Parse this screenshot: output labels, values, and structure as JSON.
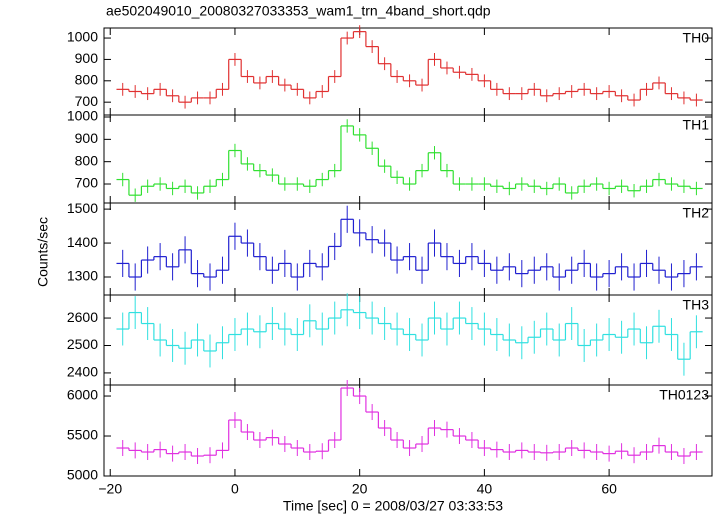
{
  "chart_data": [
    {
      "type": "line",
      "title": "ae502049010_20080327033353_wam1_trn_4band_short.qdp",
      "x": [
        -18,
        -16,
        -14,
        -12,
        -10,
        -8,
        -6,
        -4,
        -2,
        0,
        2,
        4,
        6,
        8,
        10,
        12,
        14,
        16,
        18,
        20,
        22,
        24,
        26,
        28,
        30,
        32,
        34,
        36,
        38,
        40,
        42,
        44,
        46,
        48,
        50,
        52,
        54,
        56,
        58,
        60,
        62,
        64,
        66,
        68,
        70,
        72,
        74
      ],
      "series": [
        {
          "name": "TH0",
          "color": "#e03030",
          "values": [
            760,
            750,
            740,
            760,
            730,
            700,
            720,
            720,
            760,
            900,
            820,
            790,
            820,
            780,
            760,
            720,
            750,
            820,
            1000,
            1030,
            960,
            880,
            820,
            800,
            780,
            900,
            860,
            840,
            830,
            800,
            760,
            740,
            740,
            760,
            730,
            740,
            750,
            760,
            740,
            750,
            730,
            710,
            760,
            790,
            740,
            720,
            710
          ]
        }
      ],
      "error": 30,
      "ylim": [
        640,
        1047
      ],
      "yticks": [
        700,
        800,
        900,
        1000
      ]
    },
    {
      "type": "line",
      "x": [
        -18,
        -16,
        -14,
        -12,
        -10,
        -8,
        -6,
        -4,
        -2,
        0,
        2,
        4,
        6,
        8,
        10,
        12,
        14,
        16,
        18,
        20,
        22,
        24,
        26,
        28,
        30,
        32,
        34,
        36,
        38,
        40,
        42,
        44,
        46,
        48,
        50,
        52,
        54,
        56,
        58,
        60,
        62,
        64,
        66,
        68,
        70,
        72,
        74
      ],
      "series": [
        {
          "name": "TH1",
          "color": "#30e030",
          "values": [
            720,
            650,
            690,
            700,
            680,
            690,
            660,
            690,
            720,
            850,
            790,
            760,
            740,
            700,
            700,
            690,
            720,
            760,
            960,
            920,
            860,
            780,
            730,
            700,
            760,
            840,
            760,
            700,
            700,
            700,
            690,
            680,
            700,
            690,
            680,
            700,
            660,
            690,
            700,
            680,
            690,
            670,
            690,
            720,
            700,
            690,
            680
          ]
        }
      ],
      "error": 30,
      "ylim": [
        615,
        1009
      ],
      "yticks": [
        700,
        800,
        900,
        1000
      ]
    },
    {
      "type": "line",
      "y_label": "Counts/sec",
      "x": [
        -18,
        -16,
        -14,
        -12,
        -10,
        -8,
        -6,
        -4,
        -2,
        0,
        2,
        4,
        6,
        8,
        10,
        12,
        14,
        16,
        18,
        20,
        22,
        24,
        26,
        28,
        30,
        32,
        34,
        36,
        38,
        40,
        42,
        44,
        46,
        48,
        50,
        52,
        54,
        56,
        58,
        60,
        62,
        64,
        66,
        68,
        70,
        72,
        74
      ],
      "series": [
        {
          "name": "TH2",
          "color": "#2020d0",
          "values": [
            1340,
            1300,
            1350,
            1360,
            1330,
            1380,
            1310,
            1300,
            1320,
            1420,
            1400,
            1360,
            1320,
            1340,
            1300,
            1340,
            1330,
            1390,
            1470,
            1430,
            1410,
            1400,
            1350,
            1360,
            1320,
            1400,
            1360,
            1340,
            1360,
            1340,
            1320,
            1330,
            1310,
            1320,
            1330,
            1300,
            1320,
            1340,
            1300,
            1310,
            1330,
            1300,
            1340,
            1320,
            1300,
            1310,
            1330
          ]
        }
      ],
      "error": 40,
      "ylim": [
        1247,
        1518
      ],
      "yticks": [
        1300,
        1400,
        1500
      ]
    },
    {
      "type": "line",
      "x": [
        -18,
        -16,
        -14,
        -12,
        -10,
        -8,
        -6,
        -4,
        -2,
        0,
        2,
        4,
        6,
        8,
        10,
        12,
        14,
        16,
        18,
        20,
        22,
        24,
        26,
        28,
        30,
        32,
        34,
        36,
        38,
        40,
        42,
        44,
        46,
        48,
        50,
        52,
        54,
        56,
        58,
        60,
        62,
        64,
        66,
        68,
        70,
        72,
        74
      ],
      "series": [
        {
          "name": "TH3",
          "color": "#30e0e0",
          "values": [
            2560,
            2620,
            2580,
            2520,
            2500,
            2490,
            2520,
            2480,
            2510,
            2540,
            2560,
            2550,
            2580,
            2560,
            2540,
            2590,
            2560,
            2600,
            2630,
            2620,
            2600,
            2580,
            2560,
            2540,
            2520,
            2600,
            2560,
            2600,
            2580,
            2560,
            2540,
            2520,
            2510,
            2530,
            2560,
            2520,
            2580,
            2500,
            2520,
            2540,
            2530,
            2560,
            2510,
            2570,
            2540,
            2450,
            2550
          ]
        }
      ],
      "error": 60,
      "ylim": [
        2356,
        2684
      ],
      "yticks": [
        2400,
        2500,
        2600
      ]
    },
    {
      "type": "line",
      "x_label": "Time [sec] 0 = 2008/03/27 03:33:53",
      "x": [
        -18,
        -16,
        -14,
        -12,
        -10,
        -8,
        -6,
        -4,
        -2,
        0,
        2,
        4,
        6,
        8,
        10,
        12,
        14,
        16,
        18,
        20,
        22,
        24,
        26,
        28,
        30,
        32,
        34,
        36,
        38,
        40,
        42,
        44,
        46,
        48,
        50,
        52,
        54,
        56,
        58,
        60,
        62,
        64,
        66,
        68,
        70,
        72,
        74
      ],
      "series": [
        {
          "name": "TH0123",
          "color": "#e030e0",
          "values": [
            5350,
            5320,
            5300,
            5330,
            5280,
            5300,
            5250,
            5260,
            5320,
            5700,
            5550,
            5450,
            5480,
            5400,
            5350,
            5300,
            5310,
            5450,
            6100,
            6000,
            5800,
            5600,
            5450,
            5350,
            5400,
            5600,
            5580,
            5500,
            5450,
            5350,
            5330,
            5300,
            5320,
            5300,
            5290,
            5300,
            5350,
            5320,
            5300,
            5280,
            5310,
            5260,
            5300,
            5380,
            5300,
            5250,
            5300
          ]
        }
      ],
      "error": 100,
      "ylim": [
        5000,
        6138
      ],
      "yticks": [
        5000,
        5500,
        6000
      ],
      "xlim": [
        -21,
        76.5
      ],
      "xticks": [
        {
          "value": -20,
          "label": "−20"
        },
        0,
        20,
        40,
        60
      ]
    }
  ]
}
